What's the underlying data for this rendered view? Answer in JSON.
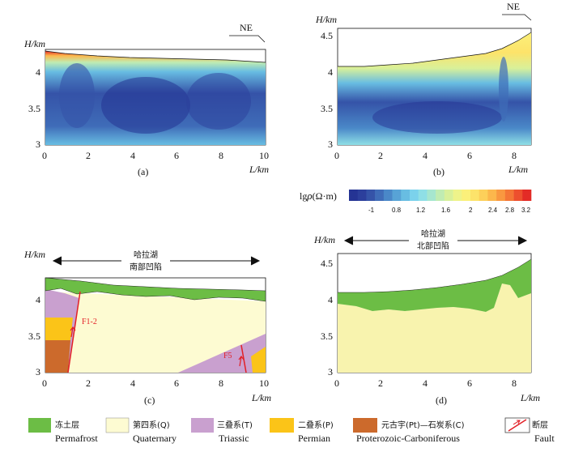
{
  "panels": {
    "a": {
      "label": "(a)",
      "ylabel": "H/km",
      "xlabel": "L/km",
      "direction": "NE",
      "xticks": [
        "0",
        "2",
        "4",
        "6",
        "8",
        "10"
      ],
      "yticks": [
        "4",
        "3.5",
        "3"
      ]
    },
    "b": {
      "label": "(b)",
      "ylabel": "H/km",
      "xlabel": "L/km",
      "direction": "NE",
      "xticks": [
        "0",
        "2",
        "4",
        "6",
        "8"
      ],
      "yticks": [
        "4.5",
        "4",
        "3.5",
        "3"
      ]
    },
    "c": {
      "label": "(c)",
      "ylabel": "H/km",
      "xlabel": "L/km",
      "lake_line1": "哈拉湖",
      "lake_line2": "南部凹陷",
      "fault1": "F1-2",
      "fault2": "F5",
      "xticks": [
        "0",
        "2",
        "4",
        "6",
        "8",
        "10"
      ],
      "yticks": [
        "4",
        "3.5",
        "3"
      ]
    },
    "d": {
      "label": "(d)",
      "ylabel": "H/km",
      "xlabel": "L/km",
      "lake_line1": "哈拉湖",
      "lake_line2": "北部凹陷",
      "xticks": [
        "0",
        "2",
        "4",
        "6",
        "8"
      ],
      "yticks": [
        "4.5",
        "4",
        "3.5",
        "3"
      ]
    }
  },
  "colorbar": {
    "title_prefix": "lg",
    "title_rho": "ρ",
    "title_unit": "(Ω·m)",
    "ticks": [
      "-1",
      "0.8",
      "1.2",
      "1.6",
      "2",
      "2.4",
      "2.8",
      "3.2"
    ],
    "colors": [
      "#253494",
      "#2c3f9c",
      "#3553a8",
      "#3f6cb8",
      "#4a88c8",
      "#58a3d6",
      "#68bde2",
      "#7bd2ec",
      "#8fdfe6",
      "#a6e6cf",
      "#c0ecb2",
      "#d8f09a",
      "#eef38a",
      "#fbf07a",
      "#fde36a",
      "#fdd05a",
      "#fcb74c",
      "#f99840",
      "#f47636",
      "#ed4f2e",
      "#e32b26"
    ]
  },
  "legend": [
    {
      "cn": "冻土层",
      "en": "Permafrost",
      "color": "#6cbd45"
    },
    {
      "cn": "第四系(Q)",
      "en": "Quaternary",
      "color": "#fdfbd2"
    },
    {
      "cn": "三叠系(T)",
      "en": "Triassic",
      "color": "#c9a0cf"
    },
    {
      "cn": "二叠系(P)",
      "en": "Permian",
      "color": "#fbc418"
    },
    {
      "cn": "元古宇(Pt)—石炭系(C)",
      "en": "Proterozoic-Carboniferous",
      "color": "#cc6a2c"
    },
    {
      "cn": "断层",
      "en": "Fault",
      "color": "#e21f26"
    }
  ]
}
